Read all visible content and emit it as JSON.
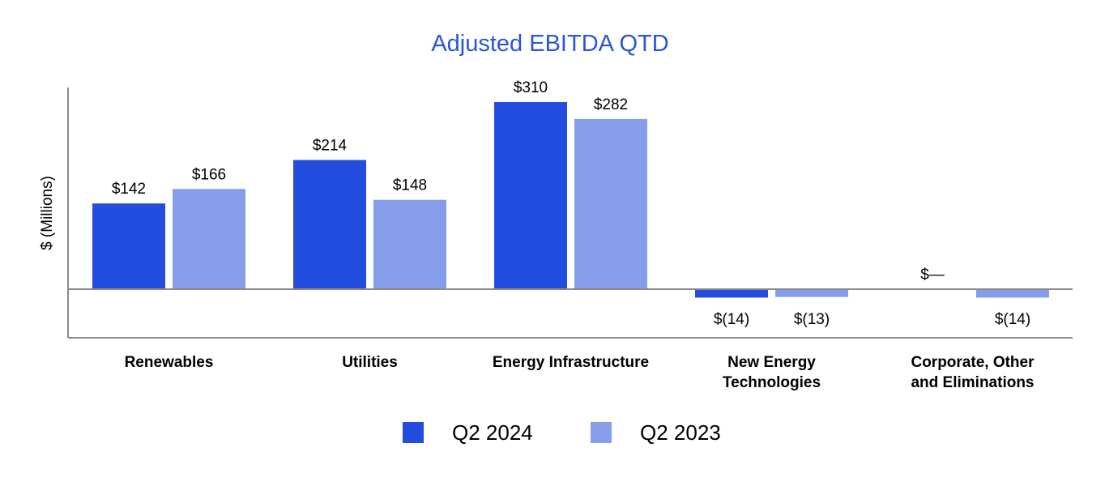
{
  "chart_data": {
    "type": "bar",
    "title": "Adjusted EBITDA QTD",
    "xlabel": "",
    "ylabel": "$ (Millions)",
    "ylim": [
      -14,
      330
    ],
    "categories": [
      [
        "Renewables"
      ],
      [
        "Utilities"
      ],
      [
        "Energy Infrastructure"
      ],
      [
        "New Energy",
        "Technologies"
      ],
      [
        "Corporate, Other",
        "and Eliminations"
      ]
    ],
    "series": [
      {
        "name": "Q2 2024",
        "color": "#224ddf",
        "values": [
          142,
          214,
          310,
          -14,
          0
        ],
        "labels": [
          "$142",
          "$214",
          "$310",
          "$(14)",
          "$—"
        ]
      },
      {
        "name": "Q2 2023",
        "color": "#869ee9",
        "values": [
          166,
          148,
          282,
          -13,
          -14
        ],
        "labels": [
          "$166",
          "$148",
          "$282",
          "$(13)",
          "$(14)"
        ]
      }
    ],
    "legend_position": "bottom-center",
    "grid": false,
    "title_color": "#2a55d6",
    "axis_color": "#8a8a8a"
  }
}
